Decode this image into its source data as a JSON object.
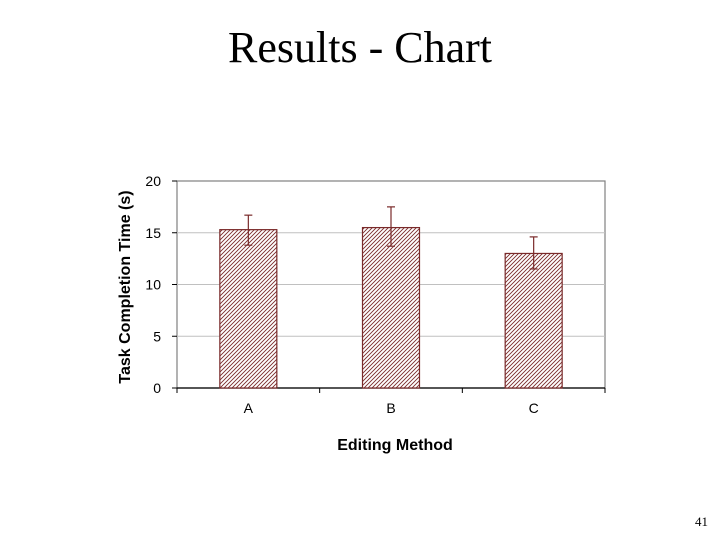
{
  "slide": {
    "title": "Results - Chart",
    "page_number": "41"
  },
  "colors": {
    "bar_border": "#7a2a2a",
    "bar_hatch": "#7a2a2a",
    "error_bar": "#7a2a2a",
    "gridline": "#c0c0c0",
    "plot_border": "#808080"
  },
  "chart_data": {
    "type": "bar",
    "title": "",
    "xlabel": "Editing Method",
    "ylabel": "Task Completion Time (s)",
    "categories": [
      "A",
      "B",
      "C"
    ],
    "values": [
      15.3,
      15.5,
      13.0
    ],
    "error_low": [
      13.8,
      13.7,
      11.5
    ],
    "error_high": [
      16.7,
      17.5,
      14.6
    ],
    "ylim": [
      0,
      20
    ],
    "yticks": [
      0,
      5,
      10,
      15,
      20
    ],
    "grid": "horizontal",
    "legend": "none"
  }
}
